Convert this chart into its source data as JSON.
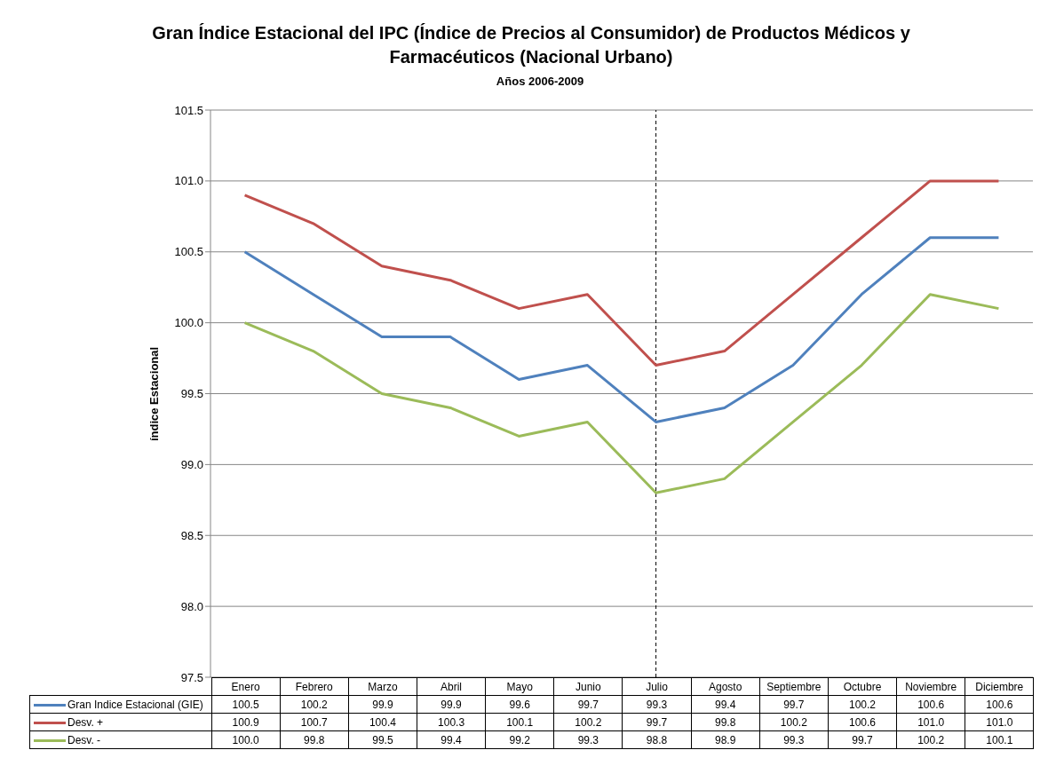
{
  "chart_data": {
    "type": "line",
    "title": "Gran Índice Estacional del IPC (Índice de Precios al Consumidor) de Productos Médicos y Farmacéuticos (Nacional Urbano)",
    "subtitle": "Años 2006-2009",
    "ylabel": "índice Estacional",
    "categories": [
      "Enero",
      "Febrero",
      "Marzo",
      "Abril",
      "Mayo",
      "Junio",
      "Julio",
      "Agosto",
      "Septiembre",
      "Octubre",
      "Noviembre",
      "Diciembre"
    ],
    "series": [
      {
        "name": "Gran Indice Estacional (GIE)",
        "color": "#4f81bd",
        "values": [
          100.5,
          100.2,
          99.9,
          99.9,
          99.6,
          99.7,
          99.3,
          99.4,
          99.7,
          100.2,
          100.6,
          100.6
        ],
        "value_labels": [
          "100.5",
          "100.2",
          "99.9",
          "99.9",
          "99.6",
          "99.7",
          "99.3",
          "99.4",
          "99.7",
          "100.2",
          "100.6",
          "100.6"
        ]
      },
      {
        "name": "Desv. +",
        "color": "#c0504d",
        "values": [
          100.9,
          100.7,
          100.4,
          100.3,
          100.1,
          100.2,
          99.7,
          99.8,
          100.2,
          100.6,
          101.0,
          101.0
        ],
        "value_labels": [
          "100.9",
          "100.7",
          "100.4",
          "100.3",
          "100.1",
          "100.2",
          "99.7",
          "99.8",
          "100.2",
          "100.6",
          "101.0",
          "101.0"
        ]
      },
      {
        "name": "Desv. -",
        "color": "#9bbb59",
        "values": [
          100.0,
          99.8,
          99.5,
          99.4,
          99.2,
          99.3,
          98.8,
          98.9,
          99.3,
          99.7,
          100.2,
          100.1
        ],
        "value_labels": [
          "100.0",
          "99.8",
          "99.5",
          "99.4",
          "99.2",
          "99.3",
          "98.8",
          "98.9",
          "99.3",
          "99.7",
          "100.2",
          "100.1"
        ]
      }
    ],
    "ylim": [
      97.5,
      101.5
    ],
    "yticks": [
      {
        "value": 97.5,
        "label": "97.5"
      },
      {
        "value": 98,
        "label": "98.0"
      },
      {
        "value": 98.5,
        "label": "98.5"
      },
      {
        "value": 99,
        "label": "99.0"
      },
      {
        "value": 99.5,
        "label": "99.5"
      },
      {
        "value": 100,
        "label": "100.0"
      },
      {
        "value": 100.5,
        "label": "100.5"
      },
      {
        "value": 101,
        "label": "101.0"
      },
      {
        "value": 101.5,
        "label": "101.5"
      }
    ],
    "grid": "y",
    "legend": "bottom",
    "ref_lines": [
      {
        "axis": "x",
        "value": "Julio",
        "color": "#000000",
        "line_style": "dashed"
      }
    ]
  }
}
